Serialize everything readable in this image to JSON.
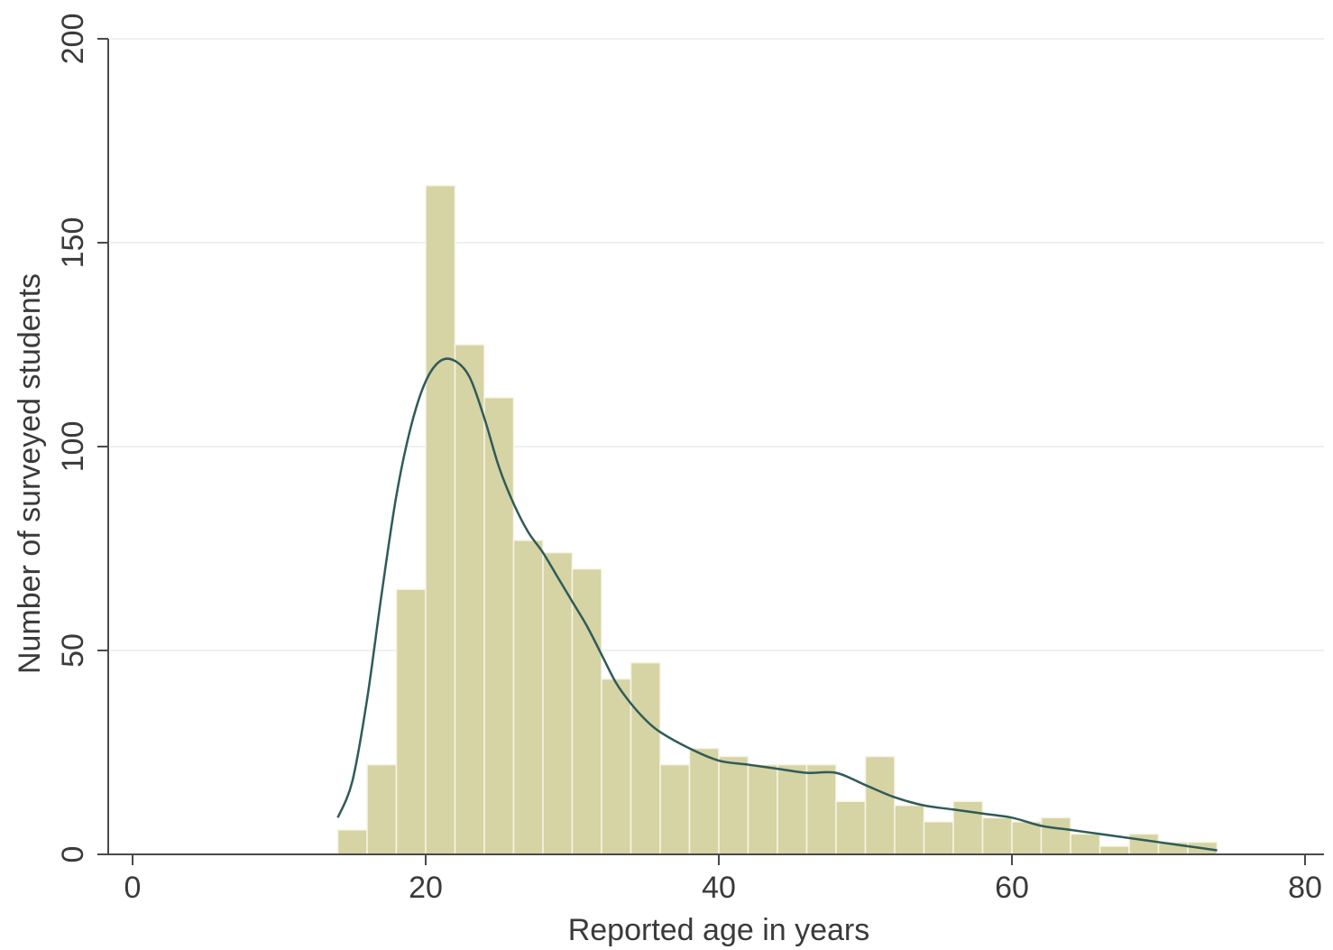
{
  "chart_data": {
    "type": "bar",
    "subtype": "histogram",
    "xlabel": "Reported age in years",
    "ylabel": "Number of surveyed students",
    "xlim": [
      0,
      80
    ],
    "ylim": [
      0,
      200
    ],
    "xticks": [
      0,
      20,
      40,
      60,
      80
    ],
    "yticks": [
      0,
      50,
      100,
      150,
      200
    ],
    "xtick_labels": [
      "0",
      "20",
      "40",
      "60",
      "80"
    ],
    "ytick_labels": [
      "0",
      "50",
      "100",
      "150",
      "200"
    ],
    "grid": "horizontal",
    "legend": "none",
    "bin_width": 2,
    "bins": [
      {
        "start": 14,
        "end": 16,
        "value": 6
      },
      {
        "start": 16,
        "end": 18,
        "value": 22
      },
      {
        "start": 18,
        "end": 20,
        "value": 65
      },
      {
        "start": 20,
        "end": 22,
        "value": 164
      },
      {
        "start": 22,
        "end": 24,
        "value": 125
      },
      {
        "start": 24,
        "end": 26,
        "value": 112
      },
      {
        "start": 26,
        "end": 28,
        "value": 77
      },
      {
        "start": 28,
        "end": 30,
        "value": 74
      },
      {
        "start": 30,
        "end": 32,
        "value": 70
      },
      {
        "start": 32,
        "end": 34,
        "value": 43
      },
      {
        "start": 34,
        "end": 36,
        "value": 47
      },
      {
        "start": 36,
        "end": 38,
        "value": 22
      },
      {
        "start": 38,
        "end": 40,
        "value": 26
      },
      {
        "start": 40,
        "end": 42,
        "value": 24
      },
      {
        "start": 42,
        "end": 44,
        "value": 22
      },
      {
        "start": 44,
        "end": 46,
        "value": 22
      },
      {
        "start": 46,
        "end": 48,
        "value": 22
      },
      {
        "start": 48,
        "end": 50,
        "value": 13
      },
      {
        "start": 50,
        "end": 52,
        "value": 24
      },
      {
        "start": 52,
        "end": 54,
        "value": 12
      },
      {
        "start": 54,
        "end": 56,
        "value": 8
      },
      {
        "start": 56,
        "end": 58,
        "value": 13
      },
      {
        "start": 58,
        "end": 60,
        "value": 9
      },
      {
        "start": 60,
        "end": 62,
        "value": 8
      },
      {
        "start": 62,
        "end": 64,
        "value": 9
      },
      {
        "start": 64,
        "end": 66,
        "value": 5
      },
      {
        "start": 66,
        "end": 68,
        "value": 2
      },
      {
        "start": 68,
        "end": 70,
        "value": 5
      },
      {
        "start": 70,
        "end": 72,
        "value": 3
      },
      {
        "start": 72,
        "end": 74,
        "value": 3
      }
    ],
    "density_curve": {
      "x": [
        14,
        15,
        16,
        17,
        18,
        19,
        20,
        21,
        22,
        23,
        24,
        25,
        26,
        27,
        28,
        29,
        30,
        31,
        32,
        33,
        34,
        35,
        36,
        38,
        40,
        42,
        44,
        46,
        48,
        50,
        52,
        54,
        56,
        58,
        60,
        62,
        64,
        66,
        68,
        70,
        72,
        74
      ],
      "y": [
        9,
        18,
        38,
        64,
        88,
        105,
        116,
        121,
        121,
        117,
        107,
        95,
        86,
        79,
        74,
        68,
        62,
        56,
        49,
        42,
        37,
        33,
        30,
        26,
        23,
        22,
        21,
        20,
        20,
        17,
        14,
        12,
        11,
        10,
        9,
        7,
        6,
        5,
        4,
        3,
        2,
        1
      ]
    },
    "colors": {
      "bar_fill": "#d6d3a4",
      "bar_edge": "#f7f5e6",
      "curve": "#2f5b58",
      "axis": "#4a4a4a",
      "grid": "#eef0f0",
      "text": "#3a3a3a"
    }
  }
}
